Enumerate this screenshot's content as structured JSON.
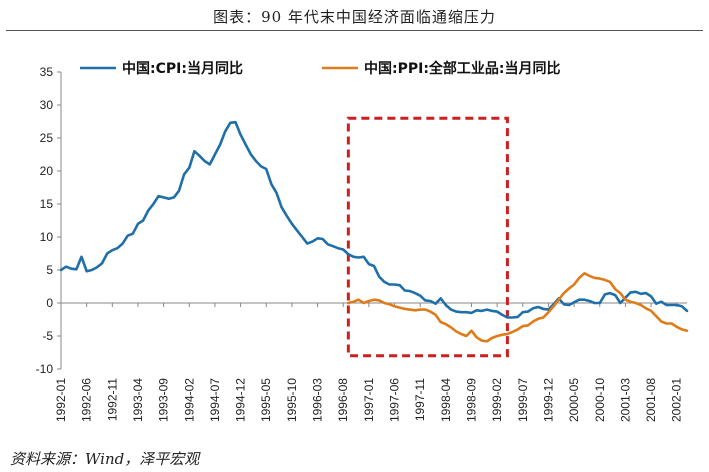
{
  "header": {
    "title": "图表：90 年代末中国经济面临通缩压力"
  },
  "footer": {
    "source": "资料来源：Wind，泽平宏观"
  },
  "chart_data": {
    "type": "line",
    "title": "图表：90 年代末中国经济面临通缩压力",
    "xlabel": "",
    "ylabel": "",
    "ylim": [
      -10,
      35
    ],
    "yticks": [
      35,
      30,
      25,
      20,
      15,
      10,
      5,
      0,
      -5,
      -10
    ],
    "grid": false,
    "legend_position": "top",
    "x_start": "1992-01",
    "x_end": "2002-03",
    "xtick_labels": [
      "1992-01",
      "1992-06",
      "1992-11",
      "1993-04",
      "1993-09",
      "1994-02",
      "1994-07",
      "1994-12",
      "1995-05",
      "1995-10",
      "1996-03",
      "1996-08",
      "1997-01",
      "1997-06",
      "1997-11",
      "1998-04",
      "1998-09",
      "1999-02",
      "1999-07",
      "1999-12",
      "2000-05",
      "2000-10",
      "2001-03",
      "2001-08",
      "2002-01"
    ],
    "highlight_box": {
      "x_from": "1996-09",
      "x_to": "1999-04",
      "y_from": -8,
      "y_to": 28,
      "color": "#cc1f1f"
    },
    "series": [
      {
        "name": "中国:CPI:当月同比",
        "color": "#1f6fa8",
        "points": [
          [
            "1992-01",
            5
          ],
          [
            "1992-02",
            5.5
          ],
          [
            "1992-03",
            5.2
          ],
          [
            "1992-04",
            5.1
          ],
          [
            "1992-05",
            7
          ],
          [
            "1992-06",
            4.8
          ],
          [
            "1992-07",
            5
          ],
          [
            "1992-08",
            5.4
          ],
          [
            "1992-09",
            6
          ],
          [
            "1992-10",
            7.5
          ],
          [
            "1992-11",
            8
          ],
          [
            "1992-12",
            8.3
          ],
          [
            "1993-01",
            9
          ],
          [
            "1993-02",
            10.2
          ],
          [
            "1993-03",
            10.5
          ],
          [
            "1993-04",
            12
          ],
          [
            "1993-05",
            12.5
          ],
          [
            "1993-06",
            14
          ],
          [
            "1993-07",
            15
          ],
          [
            "1993-08",
            16.2
          ],
          [
            "1993-09",
            16
          ],
          [
            "1993-10",
            15.8
          ],
          [
            "1993-11",
            16
          ],
          [
            "1993-12",
            17
          ],
          [
            "1994-01",
            19.5
          ],
          [
            "1994-02",
            20.5
          ],
          [
            "1994-03",
            23
          ],
          [
            "1994-04",
            22.3
          ],
          [
            "1994-05",
            21.5
          ],
          [
            "1994-06",
            21
          ],
          [
            "1994-07",
            22.5
          ],
          [
            "1994-08",
            24
          ],
          [
            "1994-09",
            26
          ],
          [
            "1994-10",
            27.3
          ],
          [
            "1994-11",
            27.4
          ],
          [
            "1994-12",
            25.5
          ],
          [
            "1995-01",
            24
          ],
          [
            "1995-02",
            22.5
          ],
          [
            "1995-03",
            21.5
          ],
          [
            "1995-04",
            20.7
          ],
          [
            "1995-05",
            20.3
          ],
          [
            "1995-06",
            18
          ],
          [
            "1995-07",
            16.7
          ],
          [
            "1995-08",
            14.5
          ],
          [
            "1995-09",
            13.2
          ],
          [
            "1995-10",
            12
          ],
          [
            "1995-11",
            11
          ],
          [
            "1995-12",
            10
          ],
          [
            "1996-01",
            9
          ],
          [
            "1996-02",
            9.3
          ],
          [
            "1996-03",
            9.8
          ],
          [
            "1996-04",
            9.7
          ],
          [
            "1996-05",
            8.9
          ],
          [
            "1996-06",
            8.6
          ],
          [
            "1996-07",
            8.3
          ],
          [
            "1996-08",
            8.1
          ],
          [
            "1996-09",
            7.4
          ],
          [
            "1996-10",
            7
          ],
          [
            "1996-11",
            6.9
          ],
          [
            "1996-12",
            7
          ],
          [
            "1997-01",
            5.9
          ],
          [
            "1997-02",
            5.6
          ],
          [
            "1997-03",
            4
          ],
          [
            "1997-04",
            3.2
          ],
          [
            "1997-05",
            2.8
          ],
          [
            "1997-06",
            2.8
          ],
          [
            "1997-07",
            2.7
          ],
          [
            "1997-08",
            1.9
          ],
          [
            "1997-09",
            1.8
          ],
          [
            "1997-10",
            1.5
          ],
          [
            "1997-11",
            1.1
          ],
          [
            "1997-12",
            0.4
          ],
          [
            "1998-01",
            0.3
          ],
          [
            "1998-02",
            -0.1
          ],
          [
            "1998-03",
            0.7
          ],
          [
            "1998-04",
            -0.3
          ],
          [
            "1998-05",
            -1
          ],
          [
            "1998-06",
            -1.3
          ],
          [
            "1998-07",
            -1.4
          ],
          [
            "1998-08",
            -1.4
          ],
          [
            "1998-09",
            -1.5
          ],
          [
            "1998-10",
            -1.1
          ],
          [
            "1998-11",
            -1.2
          ],
          [
            "1998-12",
            -1
          ],
          [
            "1999-01",
            -1.2
          ],
          [
            "1999-02",
            -1.3
          ],
          [
            "1999-03",
            -1.8
          ],
          [
            "1999-04",
            -2.2
          ],
          [
            "1999-05",
            -2.2
          ],
          [
            "1999-06",
            -2.1
          ],
          [
            "1999-07",
            -1.4
          ],
          [
            "1999-08",
            -1.3
          ],
          [
            "1999-09",
            -0.8
          ],
          [
            "1999-10",
            -0.6
          ],
          [
            "1999-11",
            -0.9
          ],
          [
            "1999-12",
            -1
          ],
          [
            "2000-01",
            -0.2
          ],
          [
            "2000-02",
            0.7
          ],
          [
            "2000-03",
            -0.2
          ],
          [
            "2000-04",
            -0.3
          ],
          [
            "2000-05",
            0.1
          ],
          [
            "2000-06",
            0.5
          ],
          [
            "2000-07",
            0.5
          ],
          [
            "2000-08",
            0.3
          ],
          [
            "2000-09",
            0
          ],
          [
            "2000-10",
            0
          ],
          [
            "2000-11",
            1.3
          ],
          [
            "2000-12",
            1.5
          ],
          [
            "2001-01",
            1.2
          ],
          [
            "2001-02",
            0
          ],
          [
            "2001-03",
            0.8
          ],
          [
            "2001-04",
            1.6
          ],
          [
            "2001-05",
            1.7
          ],
          [
            "2001-06",
            1.4
          ],
          [
            "2001-07",
            1.5
          ],
          [
            "2001-08",
            1
          ],
          [
            "2001-09",
            -0.1
          ],
          [
            "2001-10",
            0.2
          ],
          [
            "2001-11",
            -0.3
          ],
          [
            "2001-12",
            -0.3
          ],
          [
            "2002-01",
            -0.3
          ],
          [
            "2002-02",
            -0.5
          ],
          [
            "2002-03",
            -1.2
          ]
        ]
      },
      {
        "name": "中国:PPI:全部工业品:当月同比",
        "color": "#e07b1a",
        "points": [
          [
            "1996-09",
            0
          ],
          [
            "1996-10",
            0.2
          ],
          [
            "1996-11",
            0.5
          ],
          [
            "1996-12",
            0
          ],
          [
            "1997-01",
            0.3
          ],
          [
            "1997-02",
            0.5
          ],
          [
            "1997-03",
            0.4
          ],
          [
            "1997-04",
            0
          ],
          [
            "1997-05",
            -0.2
          ],
          [
            "1997-06",
            -0.5
          ],
          [
            "1997-07",
            -0.7
          ],
          [
            "1997-08",
            -0.9
          ],
          [
            "1997-09",
            -1
          ],
          [
            "1997-10",
            -1.1
          ],
          [
            "1997-11",
            -1
          ],
          [
            "1997-12",
            -1
          ],
          [
            "1998-01",
            -1.3
          ],
          [
            "1998-02",
            -1.8
          ],
          [
            "1998-03",
            -2.9
          ],
          [
            "1998-04",
            -3.2
          ],
          [
            "1998-05",
            -3.7
          ],
          [
            "1998-06",
            -4.3
          ],
          [
            "1998-07",
            -4.7
          ],
          [
            "1998-08",
            -5
          ],
          [
            "1998-09",
            -4.2
          ],
          [
            "1998-10",
            -5.2
          ],
          [
            "1998-11",
            -5.7
          ],
          [
            "1998-12",
            -5.8
          ],
          [
            "1999-01",
            -5.3
          ],
          [
            "1999-02",
            -5
          ],
          [
            "1999-03",
            -4.8
          ],
          [
            "1999-04",
            -4.7
          ],
          [
            "1999-05",
            -4.4
          ],
          [
            "1999-06",
            -4
          ],
          [
            "1999-07",
            -3.5
          ],
          [
            "1999-08",
            -3.4
          ],
          [
            "1999-09",
            -2.8
          ],
          [
            "1999-10",
            -2.4
          ],
          [
            "1999-11",
            -2.2
          ],
          [
            "1999-12",
            -1.4
          ],
          [
            "2000-01",
            -0.5
          ],
          [
            "2000-02",
            0.5
          ],
          [
            "2000-03",
            1.5
          ],
          [
            "2000-04",
            2.2
          ],
          [
            "2000-05",
            2.8
          ],
          [
            "2000-06",
            3.8
          ],
          [
            "2000-07",
            4.5
          ],
          [
            "2000-08",
            4.1
          ],
          [
            "2000-09",
            3.8
          ],
          [
            "2000-10",
            3.7
          ],
          [
            "2000-11",
            3.5
          ],
          [
            "2000-12",
            3.2
          ],
          [
            "2001-01",
            2.1
          ],
          [
            "2001-02",
            1.5
          ],
          [
            "2001-03",
            0.5
          ],
          [
            "2001-04",
            0.2
          ],
          [
            "2001-05",
            0
          ],
          [
            "2001-06",
            -0.3
          ],
          [
            "2001-07",
            -0.8
          ],
          [
            "2001-08",
            -1.2
          ],
          [
            "2001-09",
            -2
          ],
          [
            "2001-10",
            -2.8
          ],
          [
            "2001-11",
            -3.1
          ],
          [
            "2001-12",
            -3.1
          ],
          [
            "2002-01",
            -3.6
          ],
          [
            "2002-02",
            -4
          ],
          [
            "2002-03",
            -4.2
          ]
        ]
      }
    ]
  }
}
